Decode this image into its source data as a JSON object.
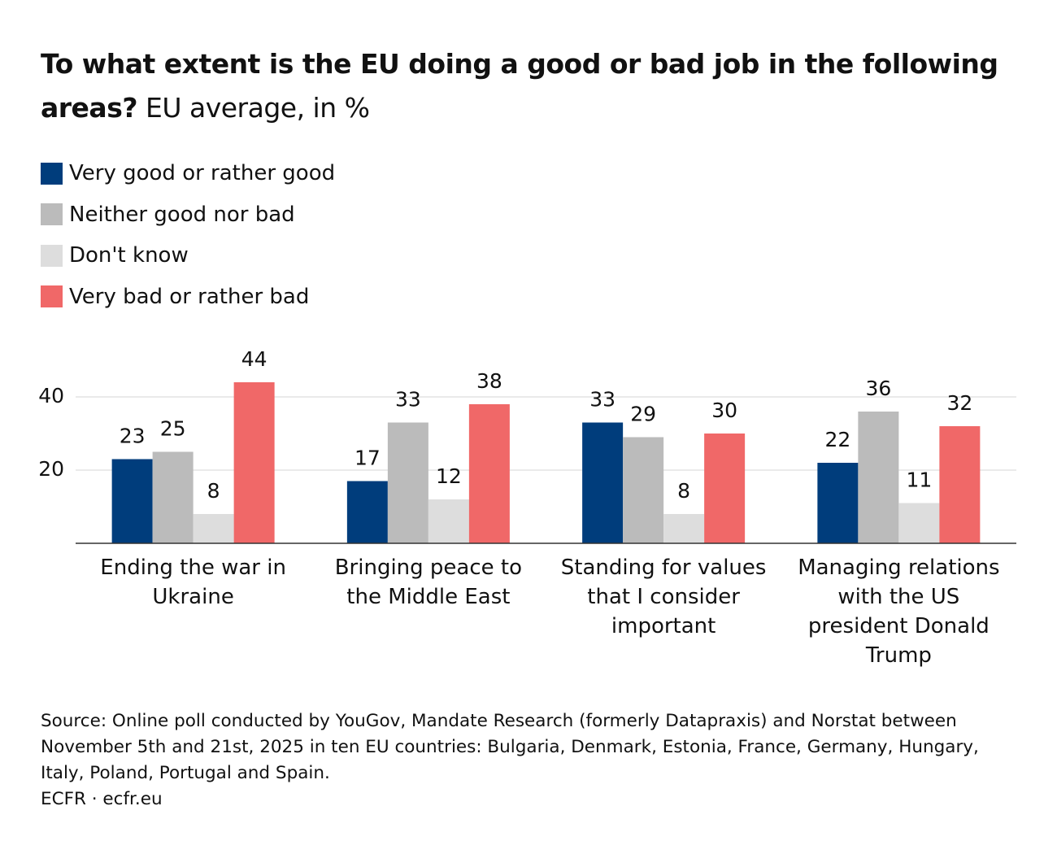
{
  "chart_data": {
    "type": "bar",
    "title": "To what extent is the EU doing a good or bad job in the following areas?",
    "subtitle": "EU average, in %",
    "categories": [
      "Ending the war in Ukraine",
      "Bringing peace to the Middle East",
      "Standing for values that I consider important",
      "Managing relations with the US president Donald Trump"
    ],
    "series": [
      {
        "name": "Very good or rather good",
        "color": "#003d7c",
        "values": [
          23,
          17,
          33,
          22
        ]
      },
      {
        "name": "Neither good nor bad",
        "color": "#bbbbbb",
        "values": [
          25,
          33,
          29,
          36
        ]
      },
      {
        "name": "Don't know",
        "color": "#dddddd",
        "values": [
          8,
          12,
          8,
          11
        ]
      },
      {
        "name": "Very bad or rather bad",
        "color": "#f06868",
        "values": [
          44,
          38,
          30,
          32
        ]
      }
    ],
    "ylim": [
      0,
      50
    ],
    "yticks": [
      20,
      40
    ],
    "grid": true,
    "source": "Source: Online poll conducted by YouGov, Mandate Research (formerly Datapraxis) and Norstat between November 5th and 21st, 2025 in ten EU countries: Bulgaria, Denmark, Estonia, France, Germany, Hungary, Italy, Poland, Portugal and Spain.",
    "credit": "ECFR · ecfr.eu"
  }
}
